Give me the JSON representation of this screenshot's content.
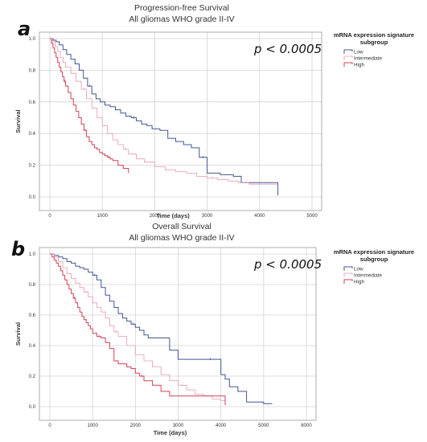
{
  "chart_data": [
    {
      "panel": "a",
      "type": "line",
      "title": "Progression-free Survival",
      "subtitle": "All gliomas WHO grade II-IV",
      "xlabel": "Time (days)",
      "ylabel": "Survival",
      "xlim": [
        0,
        5000
      ],
      "ylim": [
        0,
        1.0
      ],
      "xticks": [
        0,
        1000,
        2000,
        3000,
        4000,
        5000
      ],
      "yticks": [
        0.0,
        0.2,
        0.4,
        0.6,
        0.8,
        1.0
      ],
      "grid": true,
      "annotation": "p < 0.0005",
      "legend": {
        "title": "mRNA expression signature subgroup",
        "position": "right"
      },
      "series": [
        {
          "name": "Low",
          "color": "#44558f",
          "x": [
            0,
            60,
            120,
            180,
            250,
            320,
            400,
            480,
            560,
            640,
            720,
            800,
            880,
            960,
            1050,
            1150,
            1250,
            1350,
            1450,
            1550,
            1650,
            1750,
            1850,
            1950,
            2100,
            2250,
            2400,
            2550,
            2700,
            2850,
            3000,
            3250,
            3500,
            3650,
            3800,
            4000,
            4200,
            4350
          ],
          "y": [
            1.0,
            0.99,
            0.98,
            0.96,
            0.93,
            0.9,
            0.87,
            0.84,
            0.8,
            0.75,
            0.7,
            0.65,
            0.62,
            0.6,
            0.58,
            0.57,
            0.55,
            0.53,
            0.51,
            0.5,
            0.48,
            0.46,
            0.45,
            0.43,
            0.42,
            0.37,
            0.35,
            0.33,
            0.31,
            0.25,
            0.15,
            0.14,
            0.13,
            0.09,
            0.09,
            0.09,
            0.09,
            0.01
          ]
        },
        {
          "name": "Intermediate",
          "color": "#e39ab0",
          "x": [
            0,
            50,
            100,
            150,
            200,
            250,
            300,
            400,
            500,
            600,
            700,
            800,
            900,
            1000,
            1100,
            1200,
            1300,
            1400,
            1500,
            1650,
            1800,
            2000,
            2200,
            2400,
            2600,
            2800,
            3000,
            3200,
            3400,
            3600,
            3800,
            4000,
            4200,
            4350
          ],
          "y": [
            1.0,
            0.98,
            0.95,
            0.92,
            0.88,
            0.85,
            0.82,
            0.78,
            0.73,
            0.68,
            0.62,
            0.56,
            0.5,
            0.45,
            0.4,
            0.36,
            0.33,
            0.3,
            0.27,
            0.24,
            0.22,
            0.19,
            0.17,
            0.16,
            0.15,
            0.13,
            0.12,
            0.11,
            0.1,
            0.09,
            0.08,
            0.08,
            0.08,
            0.08
          ]
        },
        {
          "name": "High",
          "color": "#d14356",
          "x": [
            0,
            30,
            60,
            90,
            120,
            150,
            180,
            210,
            240,
            270,
            300,
            350,
            400,
            450,
            500,
            550,
            600,
            650,
            700,
            750,
            800,
            850,
            900,
            950,
            1000,
            1050,
            1100,
            1150,
            1200,
            1250,
            1300,
            1350,
            1400,
            1500
          ],
          "y": [
            1.0,
            0.97,
            0.94,
            0.91,
            0.88,
            0.85,
            0.82,
            0.79,
            0.76,
            0.73,
            0.7,
            0.66,
            0.62,
            0.58,
            0.54,
            0.5,
            0.46,
            0.42,
            0.38,
            0.35,
            0.33,
            0.31,
            0.3,
            0.28,
            0.27,
            0.26,
            0.25,
            0.24,
            0.23,
            0.23,
            0.2,
            0.2,
            0.18,
            0.15
          ]
        }
      ]
    },
    {
      "panel": "b",
      "type": "line",
      "title": "Overall Survival",
      "subtitle": "All gliomas WHO grade II-IV",
      "xlabel": "Time (days)",
      "ylabel": "Survival",
      "xlim": [
        0,
        6000
      ],
      "ylim": [
        0,
        1.0
      ],
      "xticks": [
        0,
        1000,
        2000,
        3000,
        4000,
        5000,
        6000
      ],
      "yticks": [
        0.0,
        0.2,
        0.4,
        0.6,
        0.8,
        1.0
      ],
      "grid": true,
      "annotation": "p < 0.0005",
      "legend": {
        "title": "mRNA expression signature subgroup",
        "position": "right"
      },
      "series": [
        {
          "name": "Low",
          "color": "#44558f",
          "x": [
            0,
            100,
            200,
            300,
            400,
            500,
            600,
            700,
            800,
            900,
            1000,
            1100,
            1200,
            1300,
            1400,
            1500,
            1600,
            1700,
            1800,
            1900,
            2000,
            2100,
            2200,
            2300,
            2400,
            2600,
            2800,
            3000,
            3300,
            3600,
            3900,
            4000,
            4100,
            4200,
            4400,
            4600,
            5000,
            5200
          ],
          "y": [
            1.0,
            0.99,
            0.98,
            0.97,
            0.95,
            0.94,
            0.92,
            0.91,
            0.9,
            0.88,
            0.86,
            0.83,
            0.78,
            0.73,
            0.69,
            0.65,
            0.61,
            0.58,
            0.56,
            0.54,
            0.52,
            0.5,
            0.47,
            0.45,
            0.45,
            0.45,
            0.37,
            0.31,
            0.31,
            0.31,
            0.31,
            0.21,
            0.18,
            0.13,
            0.1,
            0.03,
            0.02,
            0.02
          ]
        },
        {
          "name": "Intermediate",
          "color": "#e39ab0",
          "x": [
            0,
            100,
            200,
            300,
            400,
            500,
            600,
            700,
            800,
            900,
            1000,
            1100,
            1200,
            1300,
            1400,
            1500,
            1600,
            1800,
            2000,
            2200,
            2400,
            2600,
            2800,
            3000,
            3200,
            3400,
            3600,
            3800,
            4000,
            4100
          ],
          "y": [
            1.0,
            0.98,
            0.95,
            0.91,
            0.87,
            0.84,
            0.81,
            0.78,
            0.75,
            0.72,
            0.68,
            0.65,
            0.62,
            0.58,
            0.53,
            0.49,
            0.46,
            0.4,
            0.34,
            0.3,
            0.26,
            0.21,
            0.17,
            0.14,
            0.11,
            0.08,
            0.07,
            0.05,
            0.04,
            0.01
          ]
        },
        {
          "name": "High",
          "color": "#d14356",
          "x": [
            0,
            50,
            100,
            150,
            200,
            250,
            300,
            350,
            400,
            450,
            500,
            550,
            600,
            650,
            700,
            750,
            800,
            850,
            900,
            950,
            1000,
            1100,
            1200,
            1300,
            1400,
            1500,
            1600,
            1700,
            1800,
            1900,
            2000,
            2100,
            2200,
            2400,
            2600,
            2800,
            3000,
            3500,
            4000,
            4100
          ],
          "y": [
            1.0,
            0.98,
            0.96,
            0.94,
            0.92,
            0.89,
            0.86,
            0.83,
            0.8,
            0.77,
            0.74,
            0.71,
            0.68,
            0.65,
            0.62,
            0.59,
            0.57,
            0.55,
            0.53,
            0.51,
            0.48,
            0.46,
            0.45,
            0.42,
            0.38,
            0.3,
            0.28,
            0.28,
            0.26,
            0.25,
            0.22,
            0.2,
            0.17,
            0.14,
            0.1,
            0.07,
            0.07,
            0.07,
            0.07,
            0.01
          ]
        }
      ]
    }
  ]
}
